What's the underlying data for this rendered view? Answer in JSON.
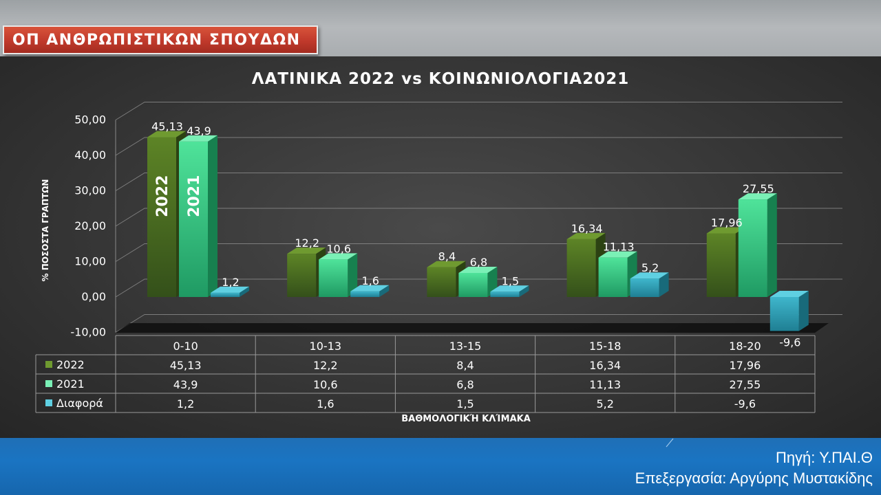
{
  "badge": {
    "title": "ΟΠ ΑΝΘΡΩΠΙΣΤΙΚΩΝ ΣΠΟΥΔΩΝ"
  },
  "footer": {
    "source": "Πηγή: Υ.ΠΑΙ.Θ",
    "credit": "Επεξεργασία: Αργύρης Μυστακίδης"
  },
  "colors": {
    "series_2022": "#4e6e1e",
    "series_2021": "#2fc07c",
    "series_diff": "#2a8ea4",
    "badge": "#c0392b",
    "footer": "#1a74c2"
  },
  "chart_data": {
    "type": "bar",
    "title": "ΛΑΤΙΝΙΚΑ 2022 vs ΚΟΙΝΩΝΙΟΛΟΓΙΑ2021",
    "xlabel": "ΒΑΘΜΟΛΟΓΙΚΉ ΚΛΊΜΑΚΑ",
    "ylabel": "% ΠΟΣΟΣΤΑ ΓΡΑΠΤΩΝ",
    "ylim": [
      -10,
      50
    ],
    "yticks": [
      "-10,00",
      "0,00",
      "10,00",
      "20,00",
      "30,00",
      "40,00",
      "50,00"
    ],
    "categories": [
      "0-10",
      "10-13",
      "13-15",
      "15-18",
      "18-20"
    ],
    "series": [
      {
        "name": "2022",
        "values": [
          45.13,
          12.2,
          8.4,
          16.34,
          17.96
        ],
        "labels": [
          "45,13",
          "12,2",
          "8,4",
          "16,34",
          "17,96"
        ]
      },
      {
        "name": "2021",
        "values": [
          43.9,
          10.6,
          6.8,
          11.13,
          27.55
        ],
        "labels": [
          "43,9",
          "10,6",
          "6,8",
          "11,13",
          "27,55"
        ]
      },
      {
        "name": "Διαφορά",
        "values": [
          1.2,
          1.6,
          1.5,
          5.2,
          -9.6
        ],
        "labels": [
          "1,2",
          "1,6",
          "1,5",
          "5,2",
          "-9,6"
        ]
      }
    ],
    "bar_text": [
      "2022",
      "2021"
    ],
    "grid": true,
    "data_table": true,
    "three_d": true
  }
}
